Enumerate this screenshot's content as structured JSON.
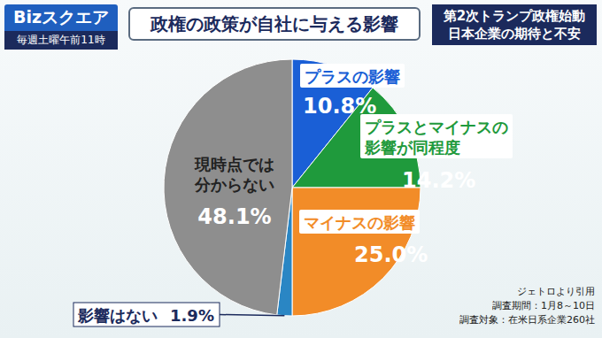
{
  "header": {
    "program": "Bizスクエア",
    "schedule": "毎週土曜午前11時"
  },
  "chart_data": {
    "type": "pie",
    "title": "政権の政策が自社に与える影響",
    "subtitle": [
      "第2次トランプ政権始動",
      "日本企業の期待と不安"
    ],
    "categories": [
      "プラスの影響",
      "プラスとマイナスの影響が同程度",
      "マイナスの影響",
      "影響はない",
      "現時点では分からない"
    ],
    "values": [
      10.8,
      14.2,
      25.0,
      1.9,
      48.1
    ],
    "value_labels": [
      "10.8%",
      "14.2%",
      "25.0%",
      "1.9%",
      "48.1%"
    ],
    "colors": [
      "#1a5fd6",
      "#1f9a3c",
      "#f28c28",
      "#2a86c4",
      "#8e8e8e"
    ],
    "data_labels": true,
    "annotations": [
      "ジェトロより引用",
      "調査期間：1月8～10日",
      "調査対象：在米日系企業260社"
    ]
  }
}
